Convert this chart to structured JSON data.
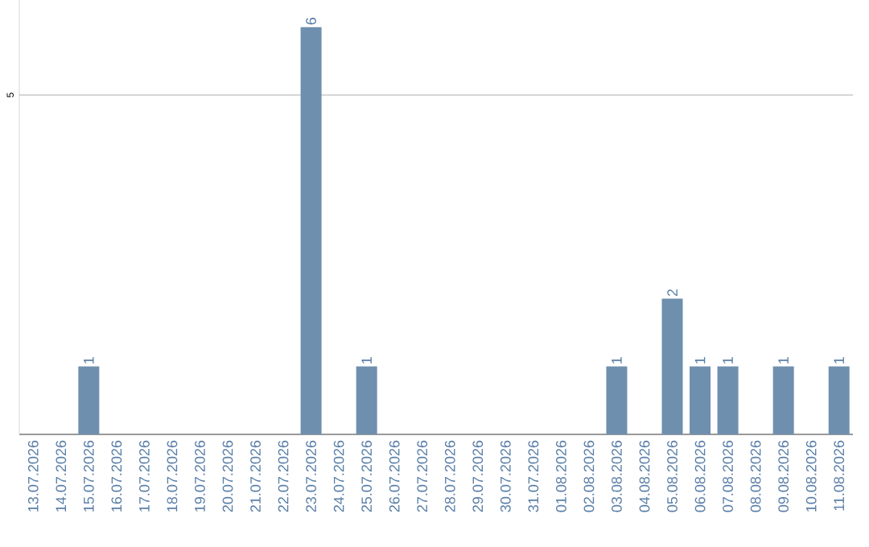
{
  "chart_data": {
    "type": "bar",
    "categories": [
      "13.07.2026",
      "14.07.2026",
      "15.07.2026",
      "16.07.2026",
      "17.07.2026",
      "18.07.2026",
      "19.07.2026",
      "20.07.2026",
      "21.07.2026",
      "22.07.2026",
      "23.07.2026",
      "24.07.2026",
      "25.07.2026",
      "26.07.2026",
      "27.07.2026",
      "28.07.2026",
      "29.07.2026",
      "30.07.2026",
      "31.07.2026",
      "01.08.2026",
      "02.08.2026",
      "03.08.2026",
      "04.08.2026",
      "05.08.2026",
      "06.08.2026",
      "07.08.2026",
      "08.08.2026",
      "09.08.2026",
      "10.08.2026",
      "11.08.2026"
    ],
    "values": [
      0,
      0,
      1,
      0,
      0,
      0,
      0,
      0,
      0,
      0,
      6,
      0,
      1,
      0,
      0,
      0,
      0,
      0,
      0,
      0,
      0,
      1,
      0,
      2,
      1,
      1,
      0,
      1,
      0,
      1
    ],
    "value_labels": [
      null,
      null,
      "1",
      null,
      null,
      null,
      null,
      null,
      null,
      null,
      "6",
      null,
      "1",
      null,
      null,
      null,
      null,
      null,
      null,
      null,
      null,
      "1",
      null,
      "2",
      "1",
      "1",
      null,
      "1",
      null,
      "1"
    ],
    "color": "#6f8fae",
    "ylim": [
      0,
      6.4
    ],
    "yticks": [
      5
    ],
    "grid": "y"
  }
}
